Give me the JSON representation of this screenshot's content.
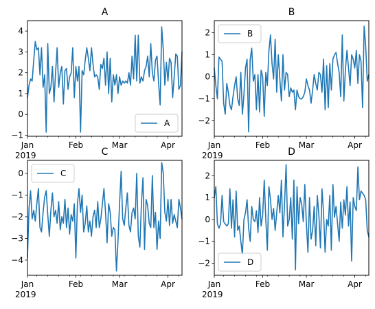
{
  "chart_data": [
    {
      "type": "line",
      "title": "A",
      "legend": "lower right",
      "x": [
        "2019-01-01",
        "2019-01-02",
        "2019-01-03",
        "2019-01-04",
        "2019-01-05",
        "2019-01-06",
        "2019-01-07",
        "2019-01-08",
        "2019-01-09",
        "2019-01-10",
        "2019-01-11",
        "2019-01-12",
        "2019-01-13",
        "2019-01-14",
        "2019-01-15",
        "2019-01-16",
        "2019-01-17",
        "2019-01-18",
        "2019-01-19",
        "2019-01-20",
        "2019-01-21",
        "2019-01-22",
        "2019-01-23",
        "2019-01-24",
        "2019-01-25",
        "2019-01-26",
        "2019-01-27",
        "2019-01-28",
        "2019-01-29",
        "2019-01-30",
        "2019-01-31",
        "2019-02-01",
        "2019-02-02",
        "2019-02-03",
        "2019-02-04",
        "2019-02-05",
        "2019-02-06",
        "2019-02-07",
        "2019-02-08",
        "2019-02-09",
        "2019-02-10",
        "2019-02-11",
        "2019-02-12",
        "2019-02-13",
        "2019-02-14",
        "2019-02-15",
        "2019-02-16",
        "2019-02-17",
        "2019-02-18",
        "2019-02-19",
        "2019-02-20",
        "2019-02-21",
        "2019-02-22",
        "2019-02-23",
        "2019-02-24",
        "2019-02-25",
        "2019-02-26",
        "2019-02-27",
        "2019-02-28",
        "2019-03-01",
        "2019-03-02",
        "2019-03-03",
        "2019-03-04",
        "2019-03-05",
        "2019-03-06",
        "2019-03-07",
        "2019-03-08",
        "2019-03-09",
        "2019-03-10",
        "2019-03-11",
        "2019-03-12",
        "2019-03-13",
        "2019-03-14",
        "2019-03-15",
        "2019-03-16",
        "2019-03-17",
        "2019-03-18",
        "2019-03-19",
        "2019-03-20",
        "2019-03-21",
        "2019-03-22",
        "2019-03-23",
        "2019-03-24",
        "2019-03-25",
        "2019-03-26",
        "2019-03-27",
        "2019-03-28",
        "2019-03-29",
        "2019-03-30",
        "2019-03-31",
        "2019-04-01",
        "2019-04-02",
        "2019-04-03",
        "2019-04-04",
        "2019-04-05",
        "2019-04-06",
        "2019-04-07",
        "2019-04-08",
        "2019-04-09",
        "2019-04-10"
      ],
      "series": [
        {
          "name": "A",
          "color": "#1f77b4",
          "values": [
            0.8,
            1.4,
            1.7,
            1.6,
            2.6,
            3.5,
            3.1,
            3.2,
            1.9,
            3.2,
            1.3,
            1.9,
            -0.85,
            3.4,
            1.0,
            1.3,
            2.3,
            0.6,
            2.0,
            3.2,
            1.3,
            2.0,
            2.3,
            0.5,
            2.1,
            2.2,
            1.2,
            1.8,
            2.0,
            3.2,
            0.8,
            2.3,
            1.6,
            2.3,
            -0.85,
            2.1,
            1.9,
            2.6,
            3.2,
            2.7,
            2.1,
            3.2,
            2.4,
            1.8,
            1.9,
            1.8,
            1.2,
            2.4,
            2.2,
            2.7,
            1.4,
            3.0,
            1.0,
            2.7,
            0.6,
            1.9,
            1.4,
            1.9,
            1.0,
            1.8,
            1.4,
            1.6,
            1.5,
            1.6,
            1.5,
            2.0,
            1.4,
            2.8,
            1.7,
            3.8,
            1.6,
            3.8,
            1.5,
            1.8,
            1.6,
            2.1,
            2.3,
            2.8,
            1.8,
            3.4,
            2.0,
            1.6,
            2.6,
            2.8,
            1.5,
            0.45,
            4.2,
            3.1,
            1.4,
            2.5,
            1.6,
            2.7,
            2.5,
            0.8,
            1.8,
            2.9,
            2.8,
            1.2,
            1.4,
            3.0
          ]
        }
      ],
      "ylim": [
        -1.05,
        4.5
      ],
      "yticks": [
        -1,
        0,
        1,
        2,
        3,
        4
      ],
      "xticks": [
        {
          "date": "2019-01-01",
          "label": "Jan",
          "year": "2019"
        },
        {
          "date": "2019-02-01",
          "label": "Feb"
        },
        {
          "date": "2019-03-01",
          "label": "Mar"
        },
        {
          "date": "2019-04-01",
          "label": "Apr"
        }
      ]
    },
    {
      "type": "line",
      "title": "B",
      "legend": "upper left",
      "x": [
        "2019-01-01",
        "2019-01-02",
        "2019-01-03",
        "2019-01-04",
        "2019-01-05",
        "2019-01-06",
        "2019-01-07",
        "2019-01-08",
        "2019-01-09",
        "2019-01-10",
        "2019-01-11",
        "2019-01-12",
        "2019-01-13",
        "2019-01-14",
        "2019-01-15",
        "2019-01-16",
        "2019-01-17",
        "2019-01-18",
        "2019-01-19",
        "2019-01-20",
        "2019-01-21",
        "2019-01-22",
        "2019-01-23",
        "2019-01-24",
        "2019-01-25",
        "2019-01-26",
        "2019-01-27",
        "2019-01-28",
        "2019-01-29",
        "2019-01-30",
        "2019-01-31",
        "2019-02-01",
        "2019-02-02",
        "2019-02-03",
        "2019-02-04",
        "2019-02-05",
        "2019-02-06",
        "2019-02-07",
        "2019-02-08",
        "2019-02-09",
        "2019-02-10",
        "2019-02-11",
        "2019-02-12",
        "2019-02-13",
        "2019-02-14",
        "2019-02-15",
        "2019-02-16",
        "2019-02-17",
        "2019-02-18",
        "2019-02-19",
        "2019-02-20",
        "2019-02-21",
        "2019-02-22",
        "2019-02-23",
        "2019-02-24",
        "2019-02-25",
        "2019-02-26",
        "2019-02-27",
        "2019-02-28",
        "2019-03-01",
        "2019-03-02",
        "2019-03-03",
        "2019-03-04",
        "2019-03-05",
        "2019-03-06",
        "2019-03-07",
        "2019-03-08",
        "2019-03-09",
        "2019-03-10",
        "2019-03-11",
        "2019-03-12",
        "2019-03-13",
        "2019-03-14",
        "2019-03-15",
        "2019-03-16",
        "2019-03-17",
        "2019-03-18",
        "2019-03-19",
        "2019-03-20",
        "2019-03-21",
        "2019-03-22",
        "2019-03-23",
        "2019-03-24",
        "2019-03-25",
        "2019-03-26",
        "2019-03-27",
        "2019-03-28",
        "2019-03-29",
        "2019-03-30",
        "2019-03-31",
        "2019-04-01",
        "2019-04-02",
        "2019-04-03",
        "2019-04-04",
        "2019-04-05",
        "2019-04-06",
        "2019-04-07",
        "2019-04-08",
        "2019-04-09",
        "2019-04-10"
      ],
      "series": [
        {
          "name": "B",
          "color": "#1f77b4",
          "values": [
            0.4,
            -0.4,
            -1.0,
            0.9,
            0.8,
            0.7,
            -1.2,
            -1.7,
            -0.3,
            -0.7,
            -1.3,
            -1.5,
            -0.9,
            -0.4,
            0.0,
            -1.0,
            -1.3,
            0.2,
            -1.7,
            -0.8,
            0.4,
            0.8,
            -2.5,
            0.8,
            1.3,
            -0.2,
            0.1,
            -1.5,
            0.1,
            -1.6,
            0.3,
            0.0,
            -1.8,
            0.2,
            -0.4,
            1.2,
            1.9,
            0.6,
            -0.1,
            1.7,
            -0.7,
            1.0,
            -0.1,
            -1.1,
            1.0,
            -0.6,
            0.2,
            0.1,
            -0.9,
            -0.5,
            -0.7,
            -0.6,
            -1.5,
            -0.6,
            -0.9,
            -1.0,
            -1.0,
            -0.9,
            -0.7,
            -0.1,
            -0.4,
            -0.6,
            -1.2,
            -0.6,
            0.1,
            -0.3,
            -0.6,
            0.2,
            0.1,
            -0.7,
            0.8,
            -1.5,
            0.5,
            -1.4,
            0.6,
            -0.6,
            0.8,
            1.0,
            1.1,
            0.6,
            0.2,
            -0.9,
            1.9,
            -1.1,
            0.3,
            1.2,
            0.4,
            -0.4,
            1.0,
            0.8,
            0.4,
            1.2,
            -0.3,
            1.0,
            0.7,
            -1.4,
            2.3,
            1.4,
            -0.2,
            0.1
          ]
        }
      ],
      "ylim": [
        -2.7,
        2.55
      ],
      "yticks": [
        -2,
        -1,
        0,
        1,
        2
      ],
      "xticks": [
        {
          "date": "2019-01-01",
          "label": "Jan",
          "year": "2019"
        },
        {
          "date": "2019-02-01",
          "label": "Feb"
        },
        {
          "date": "2019-03-01",
          "label": "Mar"
        },
        {
          "date": "2019-04-01",
          "label": "Apr"
        }
      ]
    },
    {
      "type": "line",
      "title": "C",
      "legend": "upper left",
      "x": [
        "2019-01-01",
        "2019-01-02",
        "2019-01-03",
        "2019-01-04",
        "2019-01-05",
        "2019-01-06",
        "2019-01-07",
        "2019-01-08",
        "2019-01-09",
        "2019-01-10",
        "2019-01-11",
        "2019-01-12",
        "2019-01-13",
        "2019-01-14",
        "2019-01-15",
        "2019-01-16",
        "2019-01-17",
        "2019-01-18",
        "2019-01-19",
        "2019-01-20",
        "2019-01-21",
        "2019-01-22",
        "2019-01-23",
        "2019-01-24",
        "2019-01-25",
        "2019-01-26",
        "2019-01-27",
        "2019-01-28",
        "2019-01-29",
        "2019-01-30",
        "2019-01-31",
        "2019-02-01",
        "2019-02-02",
        "2019-02-03",
        "2019-02-04",
        "2019-02-05",
        "2019-02-06",
        "2019-02-07",
        "2019-02-08",
        "2019-02-09",
        "2019-02-10",
        "2019-02-11",
        "2019-02-12",
        "2019-02-13",
        "2019-02-14",
        "2019-02-15",
        "2019-02-16",
        "2019-02-17",
        "2019-02-18",
        "2019-02-19",
        "2019-02-20",
        "2019-02-21",
        "2019-02-22",
        "2019-02-23",
        "2019-02-24",
        "2019-02-25",
        "2019-02-26",
        "2019-02-27",
        "2019-02-28",
        "2019-03-01",
        "2019-03-02",
        "2019-03-03",
        "2019-03-04",
        "2019-03-05",
        "2019-03-06",
        "2019-03-07",
        "2019-03-08",
        "2019-03-09",
        "2019-03-10",
        "2019-03-11",
        "2019-03-12",
        "2019-03-13",
        "2019-03-14",
        "2019-03-15",
        "2019-03-16",
        "2019-03-17",
        "2019-03-18",
        "2019-03-19",
        "2019-03-20",
        "2019-03-21",
        "2019-03-22",
        "2019-03-23",
        "2019-03-24",
        "2019-03-25",
        "2019-03-26",
        "2019-03-27",
        "2019-03-28",
        "2019-03-29",
        "2019-03-30",
        "2019-03-31",
        "2019-04-01",
        "2019-04-02",
        "2019-04-03",
        "2019-04-04",
        "2019-04-05",
        "2019-04-06",
        "2019-04-07",
        "2019-04-08",
        "2019-04-09",
        "2019-04-10"
      ],
      "series": [
        {
          "name": "C",
          "color": "#1f77b4",
          "values": [
            -3.9,
            -1.6,
            -0.8,
            -2.1,
            -1.7,
            -2.2,
            -1.4,
            -0.7,
            -2.5,
            -2.7,
            -1.8,
            -1.1,
            -0.8,
            -1.9,
            -2.9,
            -1.7,
            -0.9,
            -2.0,
            -1.7,
            -2.3,
            -1.3,
            -2.6,
            -2.0,
            -2.3,
            -1.2,
            -2.5,
            -1.6,
            -2.8,
            -1.9,
            -2.2,
            -1.4,
            -3.9,
            -1.4,
            -0.7,
            -1.8,
            -1.0,
            -2.7,
            -2.3,
            -1.5,
            -2.7,
            -2.2,
            -2.9,
            -2.0,
            -1.7,
            -2.5,
            -1.3,
            -2.5,
            -2.1,
            -1.4,
            -0.7,
            -1.8,
            -3.2,
            -1.4,
            -1.8,
            -2.9,
            -2.5,
            -2.6,
            -4.5,
            -3.1,
            -1.4,
            0.1,
            -2.1,
            -2.4,
            -1.6,
            -0.9,
            -2.4,
            -2.7,
            -1.8,
            -1.6,
            -2.1,
            0.0,
            -2.9,
            -3.4,
            -1.4,
            -0.2,
            -3.5,
            -1.2,
            -1.5,
            -2.3,
            -2.5,
            -0.1,
            -2.5,
            -1.8,
            -3.5,
            -2.2,
            -3.0,
            0.5,
            0.0,
            -1.8,
            -2.2,
            -1.2,
            -2.4,
            -1.2,
            -2.3,
            -1.9,
            -2.2,
            -2.5,
            -1.2,
            -1.6,
            -2.1
          ]
        }
      ],
      "ylim": [
        -4.7,
        0.6
      ],
      "yticks": [
        -4,
        -3,
        -2,
        -1,
        0
      ],
      "xticks": [
        {
          "date": "2019-01-01",
          "label": "Jan",
          "year": "2019"
        },
        {
          "date": "2019-02-01",
          "label": "Feb"
        },
        {
          "date": "2019-03-01",
          "label": "Mar"
        },
        {
          "date": "2019-04-01",
          "label": "Apr"
        }
      ]
    },
    {
      "type": "line",
      "title": "D",
      "legend": "lower left",
      "x": [
        "2019-01-01",
        "2019-01-02",
        "2019-01-03",
        "2019-01-04",
        "2019-01-05",
        "2019-01-06",
        "2019-01-07",
        "2019-01-08",
        "2019-01-09",
        "2019-01-10",
        "2019-01-11",
        "2019-01-12",
        "2019-01-13",
        "2019-01-14",
        "2019-01-15",
        "2019-01-16",
        "2019-01-17",
        "2019-01-18",
        "2019-01-19",
        "2019-01-20",
        "2019-01-21",
        "2019-01-22",
        "2019-01-23",
        "2019-01-24",
        "2019-01-25",
        "2019-01-26",
        "2019-01-27",
        "2019-01-28",
        "2019-01-29",
        "2019-01-30",
        "2019-01-31",
        "2019-02-01",
        "2019-02-02",
        "2019-02-03",
        "2019-02-04",
        "2019-02-05",
        "2019-02-06",
        "2019-02-07",
        "2019-02-08",
        "2019-02-09",
        "2019-02-10",
        "2019-02-11",
        "2019-02-12",
        "2019-02-13",
        "2019-02-14",
        "2019-02-15",
        "2019-02-16",
        "2019-02-17",
        "2019-02-18",
        "2019-02-19",
        "2019-02-20",
        "2019-02-21",
        "2019-02-22",
        "2019-02-23",
        "2019-02-24",
        "2019-02-25",
        "2019-02-26",
        "2019-02-27",
        "2019-02-28",
        "2019-03-01",
        "2019-03-02",
        "2019-03-03",
        "2019-03-04",
        "2019-03-05",
        "2019-03-06",
        "2019-03-07",
        "2019-03-08",
        "2019-03-09",
        "2019-03-10",
        "2019-03-11",
        "2019-03-12",
        "2019-03-13",
        "2019-03-14",
        "2019-03-15",
        "2019-03-16",
        "2019-03-17",
        "2019-03-18",
        "2019-03-19",
        "2019-03-20",
        "2019-03-21",
        "2019-03-22",
        "2019-03-23",
        "2019-03-24",
        "2019-03-25",
        "2019-03-26",
        "2019-03-27",
        "2019-03-28",
        "2019-03-29",
        "2019-03-30",
        "2019-03-31",
        "2019-04-01",
        "2019-04-02",
        "2019-04-03",
        "2019-04-04",
        "2019-04-05",
        "2019-04-06",
        "2019-04-07",
        "2019-04-08",
        "2019-04-09",
        "2019-04-10"
      ],
      "series": [
        {
          "name": "D",
          "color": "#1f77b4",
          "values": [
            1.0,
            1.5,
            -0.2,
            -0.4,
            -0.2,
            1.1,
            -0.1,
            -0.2,
            -0.3,
            -0.2,
            1.4,
            -0.4,
            0.9,
            -0.8,
            1.3,
            -0.5,
            -0.3,
            -1.0,
            -1.6,
            0.0,
            0.3,
            0.9,
            -0.4,
            -1.0,
            0.6,
            0.0,
            -0.1,
            0.4,
            -0.6,
            1.0,
            -0.3,
            0.2,
            1.8,
            0.0,
            -1.4,
            1.5,
            0.9,
            0.0,
            0.5,
            -0.5,
            0.3,
            1.1,
            0.3,
            1.8,
            -0.8,
            0.7,
            2.5,
            -0.3,
            0.0,
            1.0,
            -0.9,
            1.8,
            -2.3,
            1.5,
            -0.2,
            1.0,
            0.7,
            -0.1,
            1.6,
            -0.2,
            -1.5,
            1.0,
            -0.9,
            -0.5,
            0.6,
            -1.2,
            1.1,
            0.2,
            -1.3,
            1.4,
            0.3,
            -1.5,
            0.0,
            -0.3,
            1.1,
            -1.4,
            1.6,
            0.1,
            0.6,
            -0.2,
            -1.0,
            0.8,
            -0.4,
            0.9,
            0.2,
            1.5,
            -0.3,
            0.8,
            -1.9,
            1.0,
            0.6,
            0.4,
            2.4,
            0.9,
            1.3,
            1.2,
            1.1,
            0.9,
            -0.5,
            -0.8
          ]
        }
      ],
      "ylim": [
        -2.55,
        2.7
      ],
      "yticks": [
        -2,
        -1,
        0,
        1,
        2
      ],
      "xticks": [
        {
          "date": "2019-01-01",
          "label": "Jan",
          "year": "2019"
        },
        {
          "date": "2019-02-01",
          "label": "Feb"
        },
        {
          "date": "2019-03-01",
          "label": "Mar"
        },
        {
          "date": "2019-04-01",
          "label": "Apr"
        }
      ]
    }
  ]
}
